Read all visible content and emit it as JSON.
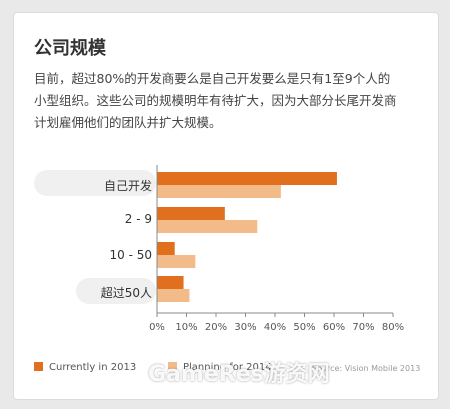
{
  "title": "公司规模",
  "description": "目前，超过80%的开发商要么是自己开发要么是只有1至9个人的小型组织。这些公司的规模明年有待扩大，因为大部分长尾开发商计划雇佣他们的团队并扩大规模。",
  "colors": {
    "current": "#e0701e",
    "planning": "#f3bb89",
    "pill": "#f0f0f0"
  },
  "legend": {
    "current": "Currently in 2013",
    "planning": "Planning for 2014"
  },
  "source": "Source: Vision Mobile 2013",
  "watermark": "GameRes游资网",
  "chart_data": {
    "type": "bar",
    "orientation": "horizontal",
    "categories": [
      "自己开发",
      "2 - 9",
      "10 - 50",
      "超过50人"
    ],
    "series": [
      {
        "name": "Currently in 2013",
        "values": [
          61,
          23,
          6,
          9
        ]
      },
      {
        "name": "Planning for 2014",
        "values": [
          42,
          34,
          13,
          11
        ]
      }
    ],
    "xlim": [
      0,
      80
    ],
    "xticks": [
      "0%",
      "10%",
      "20%",
      "30%",
      "40%",
      "50%",
      "60%",
      "70%",
      "80%"
    ],
    "legend_position": "bottom-left",
    "grid": false
  }
}
